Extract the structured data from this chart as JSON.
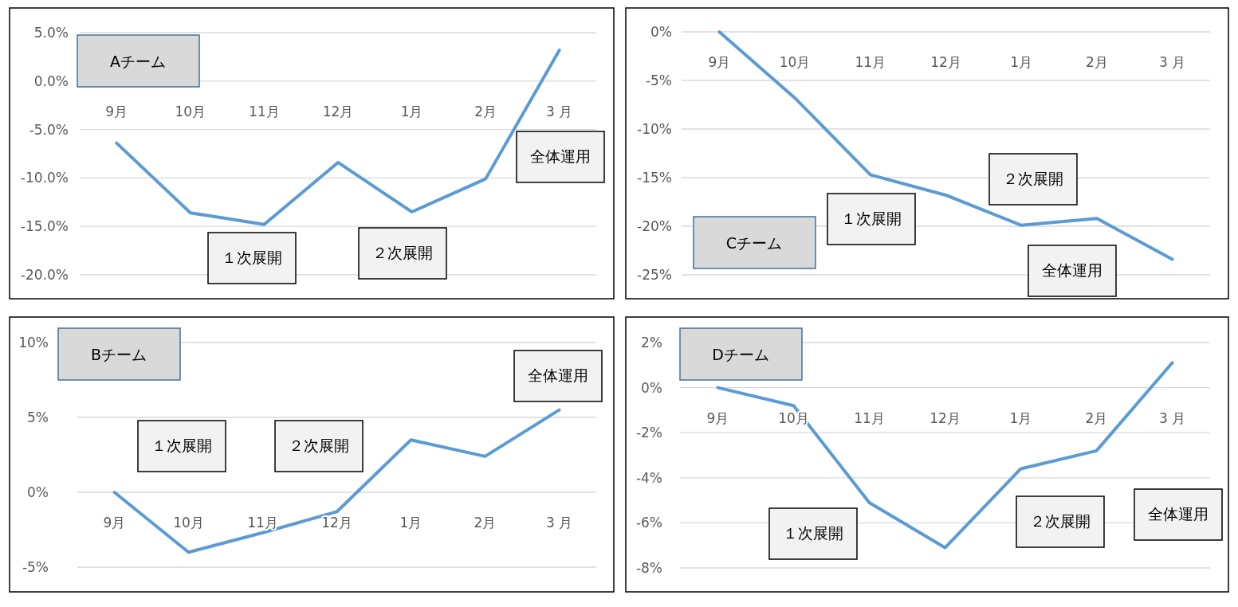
{
  "chart_data": [
    {
      "type": "line",
      "title": "Aチーム",
      "categories": [
        "9月",
        "10月",
        "11月",
        "12月",
        "1月",
        "2月",
        "3 月"
      ],
      "values": [
        -6.4,
        -13.6,
        -14.8,
        -8.4,
        -13.5,
        -10.1,
        3.2
      ],
      "color": "#5b9bd5",
      "ylim": [
        -20,
        5
      ],
      "yticks": [
        {
          "value": -20,
          "label": "-20.0%"
        },
        {
          "value": -15,
          "label": "-15.0%"
        },
        {
          "value": -10,
          "label": "-10.0%"
        },
        {
          "value": -5,
          "label": "-5.0%"
        },
        {
          "value": 0,
          "label": "0.0%"
        },
        {
          "value": 5,
          "label": "5.0%"
        }
      ],
      "grid": "y",
      "marker": "none",
      "line_style": "solid",
      "annotations": [
        "１次展開",
        "２次展開",
        "全体運用"
      ]
    },
    {
      "type": "line",
      "title": "Cチーム",
      "categories": [
        "9月",
        "10月",
        "11月",
        "12月",
        "1月",
        "2月",
        "3 月"
      ],
      "values": [
        0,
        -6.8,
        -14.7,
        -16.8,
        -19.9,
        -19.2,
        -23.4
      ],
      "color": "#5b9bd5",
      "ylim": [
        -25,
        0
      ],
      "yticks": [
        {
          "value": -25,
          "label": "-25%"
        },
        {
          "value": -20,
          "label": "-20%"
        },
        {
          "value": -15,
          "label": "-15%"
        },
        {
          "value": -10,
          "label": "-10%"
        },
        {
          "value": -5,
          "label": "-5%"
        },
        {
          "value": 0,
          "label": "0%"
        }
      ],
      "grid": "y",
      "marker": "none",
      "line_style": "solid",
      "annotations": [
        "１次展開",
        "２次展開",
        "全体運用"
      ]
    },
    {
      "type": "line",
      "title": "Bチーム",
      "categories": [
        "9月",
        "10月",
        "11月",
        "12月",
        "1月",
        "2月",
        "3 月"
      ],
      "values": [
        0,
        -4.0,
        -2.7,
        -1.3,
        3.5,
        2.4,
        5.5
      ],
      "color": "#5b9bd5",
      "ylim": [
        -5,
        10
      ],
      "yticks": [
        {
          "value": -5,
          "label": "-5%"
        },
        {
          "value": 0,
          "label": "0%"
        },
        {
          "value": 5,
          "label": "5%"
        },
        {
          "value": 10,
          "label": "10%"
        }
      ],
      "grid": "y",
      "marker": "none",
      "line_style": "solid",
      "annotations": [
        "１次展開",
        "２次展開",
        "全体運用"
      ]
    },
    {
      "type": "line",
      "title": "Dチーム",
      "categories": [
        "9月",
        "10月",
        "11月",
        "12月",
        "1月",
        "2月",
        "3 月"
      ],
      "values": [
        0,
        -0.8,
        -5.1,
        -7.1,
        -3.6,
        -2.8,
        1.1
      ],
      "color": "#5b9bd5",
      "ylim": [
        -8,
        2
      ],
      "yticks": [
        {
          "value": -8,
          "label": "-8%"
        },
        {
          "value": -6,
          "label": "-6%"
        },
        {
          "value": -4,
          "label": "-4%"
        },
        {
          "value": -2,
          "label": "-2%"
        },
        {
          "value": 0,
          "label": "0%"
        },
        {
          "value": 2,
          "label": "2%"
        }
      ],
      "grid": "y",
      "marker": "none",
      "line_style": "solid",
      "annotations": [
        "１次展開",
        "２次展開",
        "全体運用"
      ]
    }
  ]
}
